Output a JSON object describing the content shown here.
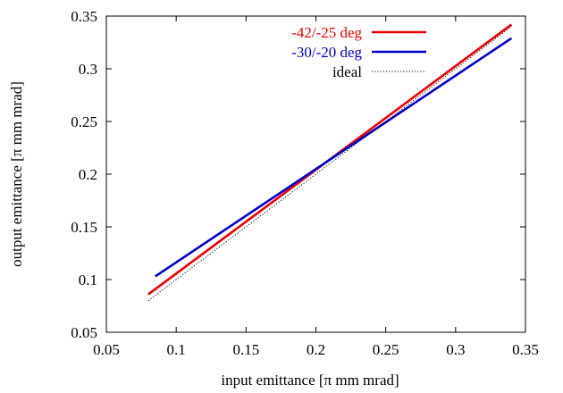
{
  "chart_data": {
    "type": "line",
    "xlabel": "input emittance [π mm mrad]",
    "ylabel": "output emittance [π mm mrad]",
    "xlim": [
      0.05,
      0.35
    ],
    "ylim": [
      0.05,
      0.35
    ],
    "xticks": [
      0.05,
      0.1,
      0.15,
      0.2,
      0.25,
      0.3,
      0.35
    ],
    "yticks": [
      0.05,
      0.1,
      0.15,
      0.2,
      0.25,
      0.3,
      0.35
    ],
    "xtick_labels": [
      "0.05",
      "0.1",
      "0.15",
      "0.2",
      "0.25",
      "0.3",
      "0.35"
    ],
    "ytick_labels": [
      "0.05",
      "0.1",
      "0.15",
      "0.2",
      "0.25",
      "0.3",
      "0.35"
    ],
    "grid": false,
    "legend_position": "top-right",
    "series": [
      {
        "name": "-42/-25 deg",
        "color": "#ee0000",
        "style": "solid",
        "x": [
          0.08,
          0.34
        ],
        "y": [
          0.086,
          0.342
        ]
      },
      {
        "name": "-30/-20 deg",
        "color": "#0000cc",
        "style": "solid",
        "x": [
          0.085,
          0.34
        ],
        "y": [
          0.103,
          0.329
        ]
      },
      {
        "name": "ideal",
        "color": "#000000",
        "style": "dotted",
        "x": [
          0.08,
          0.34
        ],
        "y": [
          0.08,
          0.34
        ]
      }
    ]
  }
}
